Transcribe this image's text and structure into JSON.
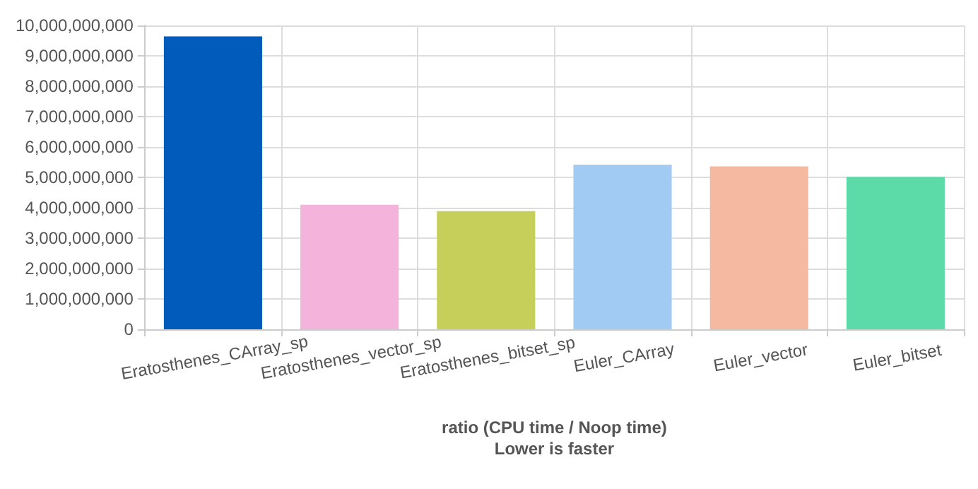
{
  "chart_data": {
    "type": "bar",
    "xlabel": "ratio (CPU time / Noop time)\nLower is faster",
    "categories": [
      "Eratosthenes_CArray_sp",
      "Eratosthenes_vector_sp",
      "Eratosthenes_bitset_sp",
      "Euler_CArray",
      "Euler_vector",
      "Euler_bitset"
    ],
    "values": [
      9640000000,
      4100000000,
      3890000000,
      5420000000,
      5360000000,
      5020000000
    ],
    "colors": [
      "#005bbb",
      "#f4b3da",
      "#c5cf5a",
      "#a2cbf4",
      "#f5b8a0",
      "#5cdba8"
    ],
    "ylim": [
      0,
      10000000000
    ],
    "yticks": [
      0,
      {
        "value": 1000000000,
        "label": "1,000,000,000"
      },
      {
        "value": 2000000000,
        "label": "2,000,000,000"
      },
      {
        "value": 3000000000,
        "label": "3,000,000,000"
      },
      {
        "value": 4000000000,
        "label": "4,000,000,000"
      },
      {
        "value": 5000000000,
        "label": "5,000,000,000"
      },
      {
        "value": 6000000000,
        "label": "6,000,000,000"
      },
      {
        "value": 7000000000,
        "label": "7,000,000,000"
      },
      {
        "value": 8000000000,
        "label": "8,000,000,000"
      },
      {
        "value": 9000000000,
        "label": "9,000,000,000"
      },
      {
        "value": 10000000000,
        "label": "10,000,000,000"
      }
    ],
    "grid": true
  }
}
